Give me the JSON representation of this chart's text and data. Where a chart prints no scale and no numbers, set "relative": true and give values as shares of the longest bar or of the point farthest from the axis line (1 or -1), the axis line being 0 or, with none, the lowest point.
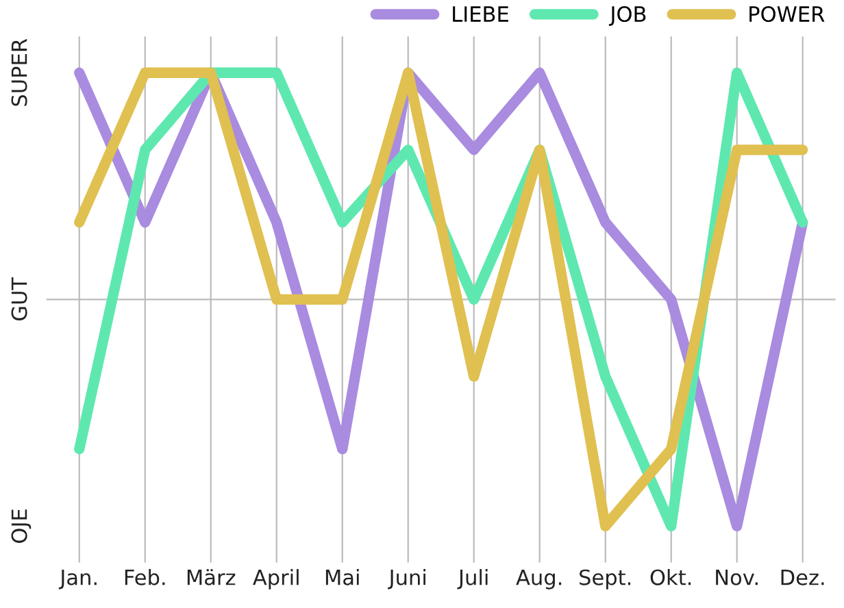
{
  "chart_data": {
    "type": "line",
    "relative": true,
    "categories": [
      "Jan.",
      "Feb.",
      "März",
      "April",
      "Mai",
      "Juni",
      "Juli",
      "Aug.",
      "Sept.",
      "Okt.",
      "Nov.",
      "Dez."
    ],
    "series": [
      {
        "name": "LIEBE",
        "color": "#a98be0",
        "values": [
          1,
          0.67,
          1,
          0.67,
          0.17,
          1,
          0.83,
          1,
          0.67,
          0.5,
          0,
          0.67
        ]
      },
      {
        "name": "JOB",
        "color": "#5ee8b0",
        "values": [
          0.17,
          0.83,
          1,
          1,
          0.67,
          0.83,
          0.5,
          0.83,
          0.33,
          0,
          1,
          0.67
        ]
      },
      {
        "name": "POWER",
        "color": "#e0c050",
        "values": [
          0.67,
          1,
          1,
          0.5,
          0.5,
          1,
          0.33,
          0.83,
          0,
          0.17,
          0.83,
          0.83
        ]
      }
    ],
    "annotations": [
      "OJE",
      "GUT",
      "SUPER"
    ],
    "grid": "x",
    "ref_lines": [
      {
        "axis": "y",
        "value": 0.5,
        "color": "#bbbbbb"
      }
    ],
    "legend": "top right",
    "marker": "none",
    "line_style": "solid"
  }
}
